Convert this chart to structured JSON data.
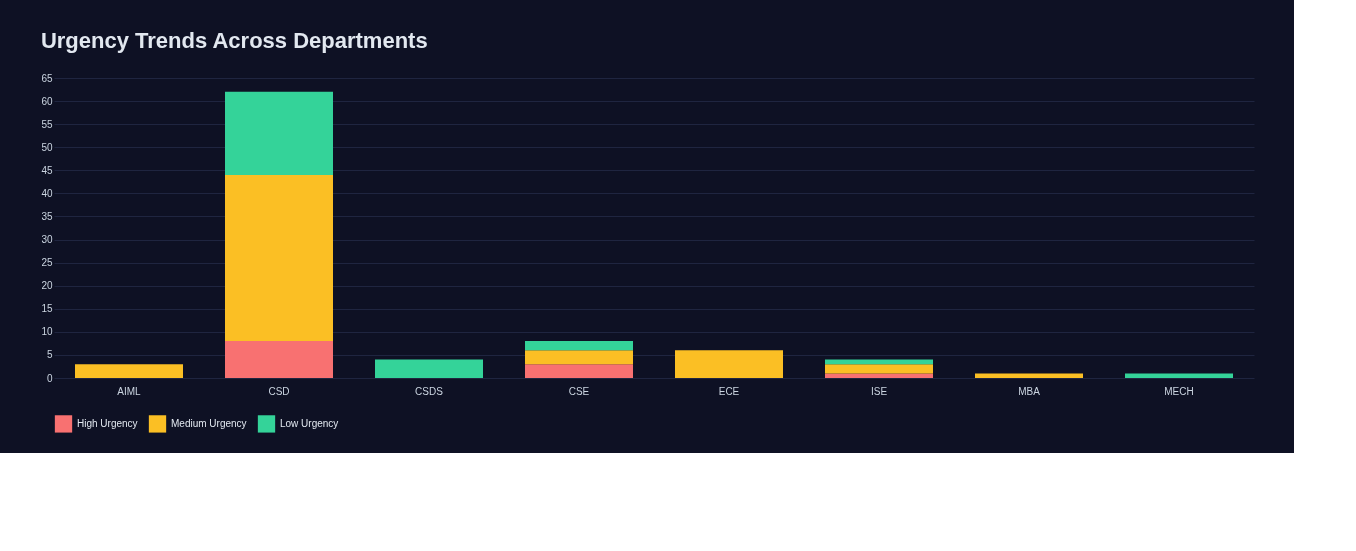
{
  "chart_data": {
    "type": "bar",
    "title": "Urgency Trends Across Departments",
    "stacked": true,
    "categories": [
      "AIML",
      "CSD",
      "CSDS",
      "CSE",
      "ECE",
      "ISE",
      "MBA",
      "MECH"
    ],
    "series": [
      {
        "name": "High Urgency",
        "color": "#f87171",
        "values": [
          0,
          8,
          0,
          3,
          0,
          1,
          0,
          0
        ]
      },
      {
        "name": "Medium Urgency",
        "color": "#fbbf24",
        "values": [
          3,
          36,
          0,
          3,
          6,
          2,
          1,
          0
        ]
      },
      {
        "name": "Low Urgency",
        "color": "#34d399",
        "values": [
          0,
          18,
          4,
          2,
          0,
          1,
          0,
          1
        ]
      }
    ],
    "ylim": [
      0,
      65
    ],
    "yticks": [
      0,
      5,
      10,
      15,
      20,
      25,
      30,
      35,
      40,
      45,
      50,
      55,
      60,
      65
    ],
    "grid": "y",
    "legend": "bottom"
  }
}
